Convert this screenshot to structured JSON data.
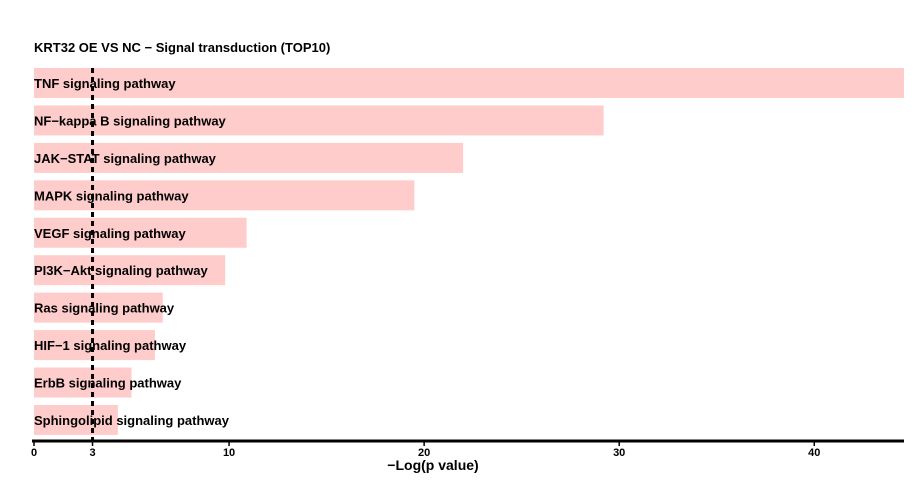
{
  "chart_data": {
    "type": "bar",
    "orientation": "horizontal",
    "title": "KRT32 OE VS NC − Signal transduction (TOP10)",
    "xlabel": "−Log(p value)",
    "ylabel": "",
    "categories": [
      "TNF signaling pathway",
      "NF−kappa B signaling pathway",
      "JAK−STAT signaling pathway",
      "MAPK signaling pathway",
      "VEGF signaling pathway",
      "PI3K−Akt signaling pathway",
      "Ras signaling pathway",
      "HIF−1 signaling pathway",
      "ErbB signaling pathway",
      "Sphingolipid signaling pathway"
    ],
    "values": [
      44.6,
      29.2,
      22.0,
      19.5,
      10.9,
      9.8,
      6.6,
      6.2,
      5.0,
      4.3
    ],
    "xlim": [
      0,
      44.6
    ],
    "xticks": [
      "0",
      "3",
      "10",
      "20",
      "30",
      "40"
    ],
    "threshold_line": 3,
    "bar_color": "#ffcccc",
    "threshold_color": "#000000",
    "grid": false
  }
}
